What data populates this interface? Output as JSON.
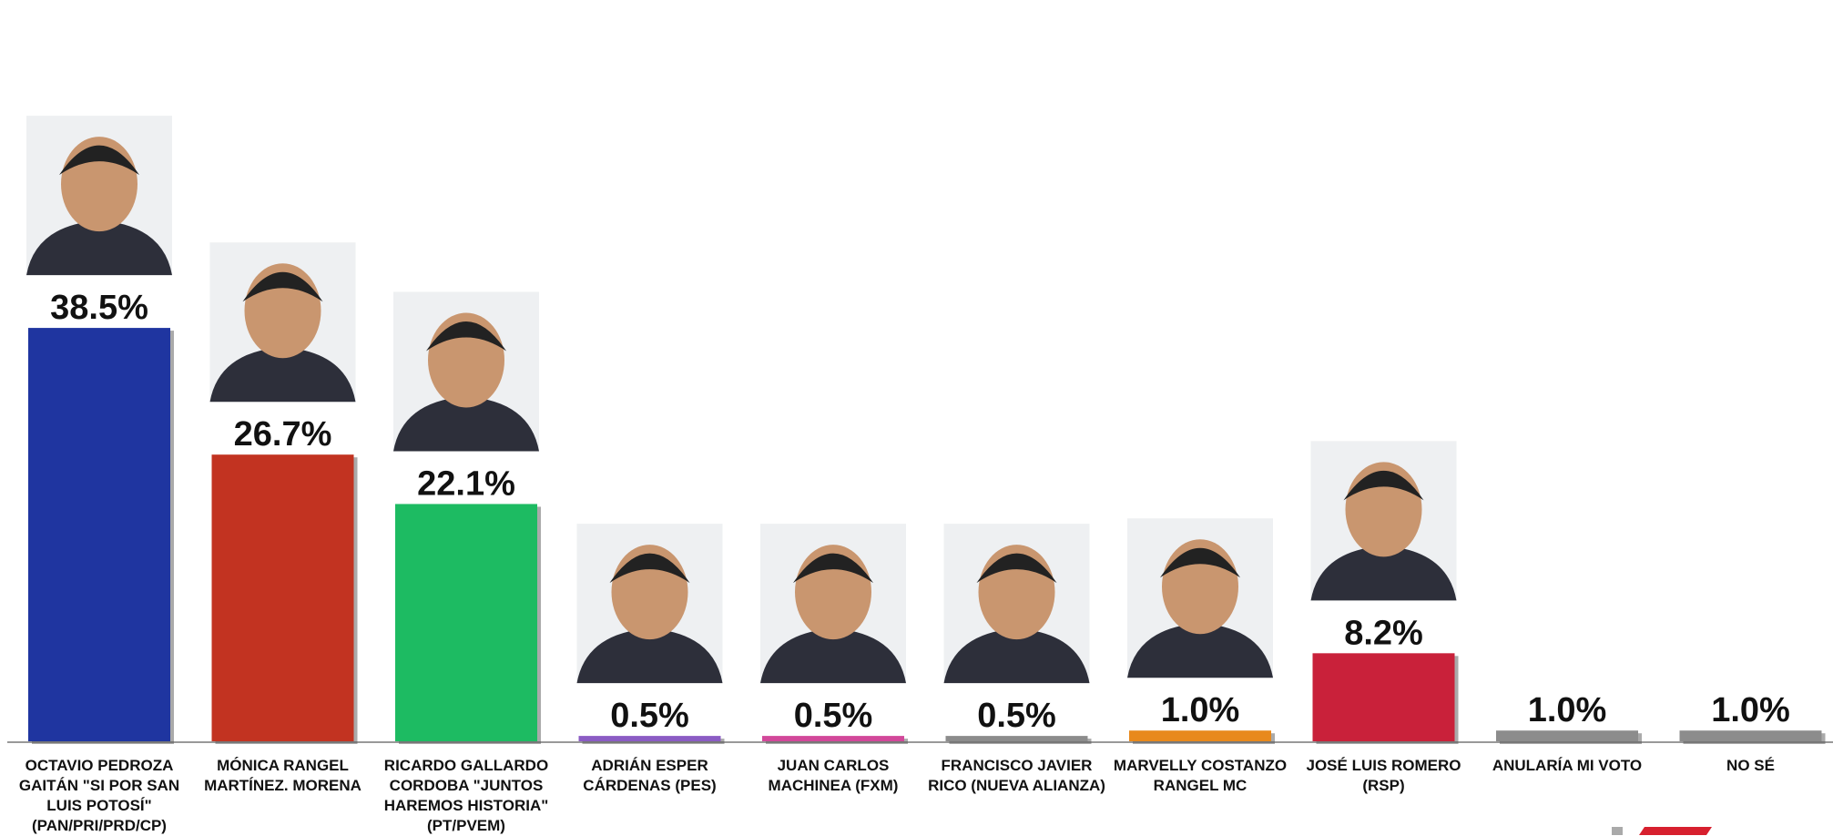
{
  "chart_data": {
    "type": "bar",
    "categories": [
      "OCTAVIO PEDROZA GAITÁN \"SI POR SAN LUIS POTOSÍ\" (PAN/PRI/PRD/CP)",
      "MÓNICA RANGEL MARTÍNEZ. MORENA",
      "RICARDO GALLARDO CORDOBA \"JUNTOS HAREMOS HISTORIA\" (PT/PVEM)",
      "ADRIÁN ESPER CÁRDENAS (PES)",
      "JUAN CARLOS MACHINEA (FXM)",
      "FRANCISCO JAVIER RICO (NUEVA ALIANZA)",
      "MARVELLY COSTANZO RANGEL MC",
      "JOSÉ LUIS ROMERO (RSP)",
      "ANULARÍA MI VOTO",
      "NO SÉ"
    ],
    "values": [
      38.5,
      26.7,
      22.1,
      0.5,
      0.5,
      0.5,
      1.0,
      8.2,
      1.0,
      1.0
    ],
    "value_labels": [
      "38.5%",
      "26.7%",
      "22.1%",
      "0.5%",
      "0.5%",
      "0.5%",
      "1.0%",
      "8.2%",
      "1.0%",
      "1.0%"
    ],
    "colors": [
      "#1f35a0",
      "#c23321",
      "#1dbb62",
      "#8b5cc4",
      "#d2489a",
      "#8c8c8c",
      "#e8891c",
      "#c9213a",
      "#8c8c8c",
      "#8c8c8c"
    ]
  }
}
